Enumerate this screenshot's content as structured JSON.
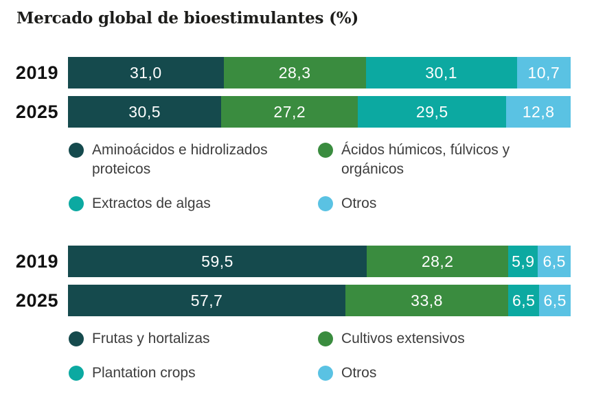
{
  "page": {
    "title": "Mercado global de bioestimulantes (%)"
  },
  "colors": {
    "series_palette": [
      "#154A4D",
      "#3A8C3F",
      "#0CA9A1",
      "#5AC2E3"
    ],
    "bar_value_text": "#FFFFFF",
    "title_text": "#1D1D1B",
    "legend_text": "#3D3D3D",
    "background": "#FFFFFF"
  },
  "chart_data": [
    {
      "type": "bar",
      "orientation": "horizontal",
      "stacked": true,
      "unit": "%",
      "title": "Mercado global de bioestimulantes (%)",
      "categories": [
        "2019",
        "2025"
      ],
      "series": [
        {
          "name": "Aminoácidos e hidrolizados proteicos",
          "color": "#154A4D",
          "values": [
            31.0,
            30.5
          ],
          "labels": [
            "31,0",
            "30,5"
          ]
        },
        {
          "name": "Ácidos húmicos, fúlvicos y orgánicos",
          "color": "#3A8C3F",
          "values": [
            28.3,
            27.2
          ],
          "labels": [
            "28,3",
            "27,2"
          ]
        },
        {
          "name": "Extractos de algas",
          "color": "#0CA9A1",
          "values": [
            30.1,
            29.5
          ],
          "labels": [
            "30,1",
            "29,5"
          ]
        },
        {
          "name": "Otros",
          "color": "#5AC2E3",
          "values": [
            10.7,
            12.8
          ],
          "labels": [
            "10,7",
            "12,8"
          ]
        }
      ],
      "xlim": [
        0,
        100
      ],
      "grid": false,
      "legend_position": "below",
      "value_labels": "inside-center"
    },
    {
      "type": "bar",
      "orientation": "horizontal",
      "stacked": true,
      "unit": "%",
      "title": "",
      "categories": [
        "2019",
        "2025"
      ],
      "series": [
        {
          "name": "Frutas y hortalizas",
          "color": "#154A4D",
          "values": [
            59.5,
            57.7
          ],
          "labels": [
            "59,5",
            "57,7"
          ]
        },
        {
          "name": "Cultivos extensivos",
          "color": "#3A8C3F",
          "values": [
            28.2,
            33.8
          ],
          "labels": [
            "28,2",
            "33,8"
          ]
        },
        {
          "name": "Plantation crops",
          "color": "#0CA9A1",
          "values": [
            5.9,
            6.5
          ],
          "labels": [
            "5,9",
            "6,5"
          ]
        },
        {
          "name": "Otros",
          "color": "#5AC2E3",
          "values": [
            6.5,
            6.5
          ],
          "labels": [
            "6,5",
            "6,5"
          ]
        }
      ],
      "xlim": [
        0,
        100
      ],
      "grid": false,
      "legend_position": "below",
      "value_labels": "inside-center"
    }
  ]
}
